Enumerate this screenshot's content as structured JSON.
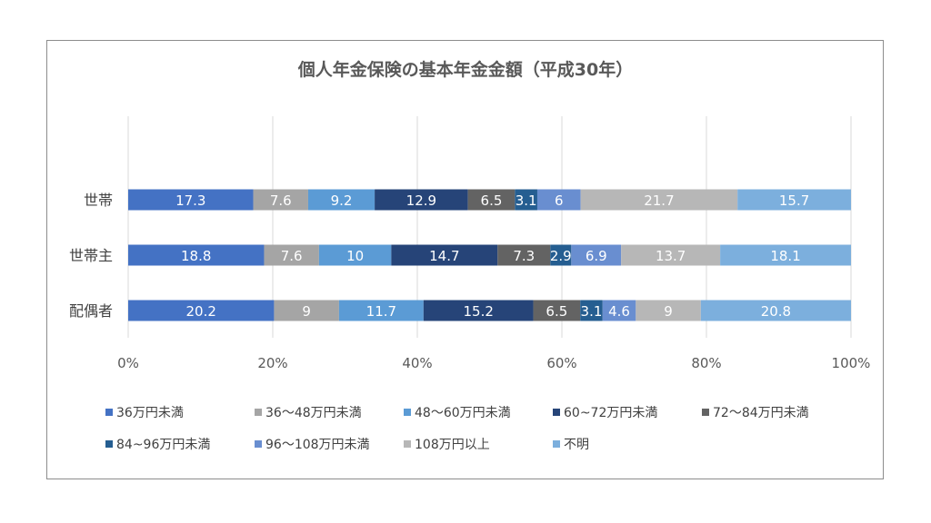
{
  "chart_data": {
    "type": "bar",
    "orientation": "horizontal",
    "stacked": "100%",
    "title": "個人年金保険の基本年金金額（平成30年）",
    "categories": [
      "世帯",
      "世帯主",
      "配偶者"
    ],
    "x_ticks": [
      "0%",
      "20%",
      "40%",
      "60%",
      "80%",
      "100%"
    ],
    "xlim": [
      0,
      100
    ],
    "grid": true,
    "legend_position": "bottom",
    "series": [
      {
        "name": "36万円未満",
        "color": "#4472c4",
        "values": [
          17.3,
          18.8,
          20.2
        ],
        "labels": [
          "17.3",
          "18.8",
          "20.2"
        ]
      },
      {
        "name": "36～48万円未満",
        "color": "#a5a5a5",
        "values": [
          7.6,
          7.6,
          9
        ],
        "labels": [
          "7.6",
          "7.6",
          "9"
        ]
      },
      {
        "name": "48～60万円未満",
        "color": "#5b9bd5",
        "values": [
          9.2,
          10,
          11.7
        ],
        "labels": [
          "9.2",
          "10",
          "11.7"
        ]
      },
      {
        "name": "60~72万円未満",
        "color": "#264478",
        "values": [
          12.9,
          14.7,
          15.2
        ],
        "labels": [
          "12.9",
          "14.7",
          "15.2"
        ]
      },
      {
        "name": "72～84万円未満",
        "color": "#636363",
        "values": [
          6.5,
          7.3,
          6.5
        ],
        "labels": [
          "6.5",
          "7.3",
          "6.5"
        ]
      },
      {
        "name": "84~96万円未満",
        "color": "#255e91",
        "values": [
          3.1,
          2.9,
          3.1
        ],
        "labels": [
          "3.1",
          "2.9",
          "3.1"
        ]
      },
      {
        "name": "96～108万円未満",
        "color": "#698ed0",
        "values": [
          6,
          6.9,
          4.6
        ],
        "labels": [
          "6",
          "6.9",
          "4.6"
        ]
      },
      {
        "name": "108万円以上",
        "color": "#b7b7b7",
        "values": [
          21.7,
          13.7,
          9
        ],
        "labels": [
          "21.7",
          "13.7",
          "9"
        ]
      },
      {
        "name": "不明",
        "color": "#7cafdd",
        "values": [
          15.7,
          18.1,
          20.8
        ],
        "labels": [
          "15.7",
          "18.1",
          "20.8"
        ]
      }
    ]
  }
}
